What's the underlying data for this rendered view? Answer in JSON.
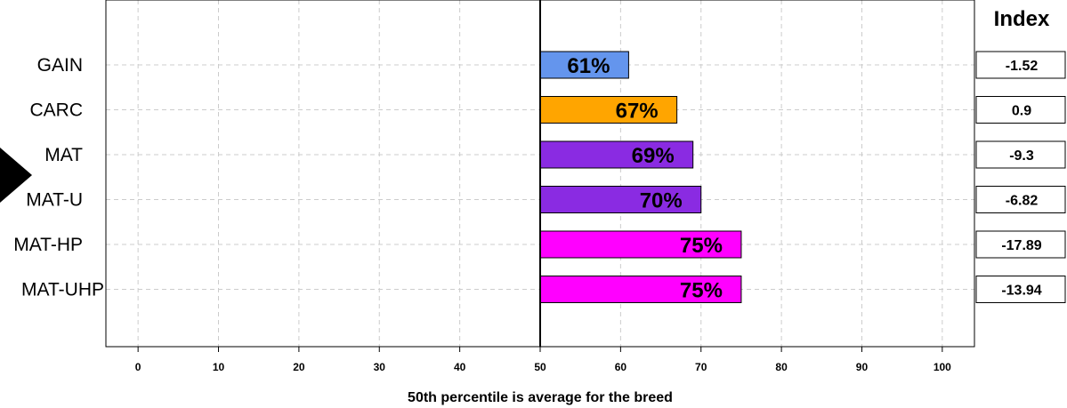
{
  "chart_data": {
    "type": "bar",
    "orientation": "horizontal",
    "categories": [
      "GAIN",
      "CARC",
      "MAT",
      "MAT-U",
      "MAT-HP",
      "MAT-UHP"
    ],
    "values": [
      61,
      67,
      69,
      70,
      75,
      75
    ],
    "value_labels": [
      "61%",
      "67%",
      "69%",
      "70%",
      "75%",
      "75%"
    ],
    "bar_colors": [
      "#6495ED",
      "#FFA500",
      "#8A2BE2",
      "#8A2BE2",
      "#FF00FF",
      "#FF00FF"
    ],
    "baseline": 50,
    "xlim": [
      -4,
      104
    ],
    "xticks": [
      0,
      10,
      20,
      30,
      40,
      50,
      60,
      70,
      80,
      90,
      100
    ],
    "xlabel": "50th percentile is average for the breed",
    "grid": true,
    "marker": {
      "shape": "triangle-right",
      "category": "MAT"
    },
    "index": {
      "title": "Index",
      "values": [
        "-1.52",
        "0.9",
        "-9.3",
        "-6.82",
        "-17.89",
        "-13.94"
      ]
    }
  }
}
